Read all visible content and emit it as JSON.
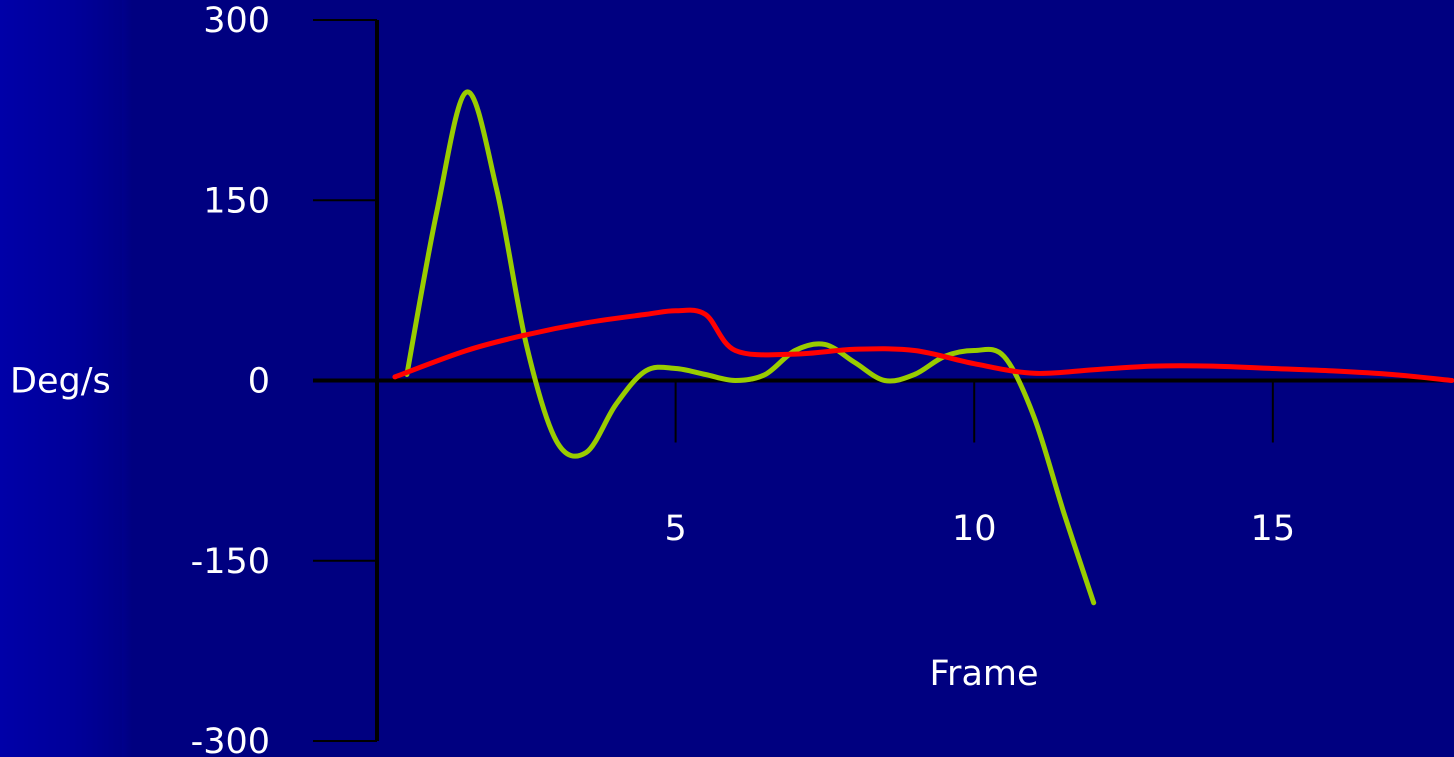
{
  "chart_data": {
    "type": "line",
    "title": "",
    "xlabel": "Frame",
    "ylabel": "Deg/s",
    "ylim": [
      -300,
      300
    ],
    "xlim": [
      0,
      18
    ],
    "yticks": [
      300,
      150,
      0,
      -150,
      -300
    ],
    "ytick_labels": [
      "300",
      "150",
      "0",
      "-150",
      "-300"
    ],
    "xticks": [
      5,
      10,
      15
    ],
    "xtick_labels": [
      "5",
      "10",
      "15"
    ],
    "grid": false,
    "legend": "none",
    "series": [
      {
        "color": "#99cc00",
        "x": [
          0.5,
          1.0,
          1.5,
          2.0,
          2.5,
          3.0,
          3.5,
          4.0,
          4.5,
          5.0,
          5.5,
          6.0,
          6.5,
          7.0,
          7.5,
          8.0,
          8.5,
          9.0,
          9.5,
          10.0,
          10.5,
          11.0,
          11.5,
          12.0
        ],
        "values": [
          5,
          140,
          240,
          160,
          30,
          -50,
          -60,
          -20,
          8,
          10,
          5,
          0,
          5,
          25,
          30,
          15,
          0,
          5,
          20,
          25,
          20,
          -30,
          -110,
          -185
        ]
      },
      {
        "color": "#ff0000",
        "x": [
          0.3,
          1.5,
          2.5,
          3.5,
          4.5,
          5.0,
          5.5,
          6.0,
          7.0,
          8.0,
          9.0,
          10.0,
          11.0,
          12.0,
          13.0,
          14.0,
          15.0,
          16.0,
          17.0,
          18.0
        ],
        "values": [
          3,
          25,
          38,
          48,
          55,
          58,
          55,
          25,
          22,
          26,
          25,
          14,
          6,
          9,
          12,
          12,
          10,
          8,
          5,
          0
        ]
      }
    ]
  },
  "colors": {
    "background": "#000080",
    "axis": "#000000",
    "text": "#ffffff"
  }
}
